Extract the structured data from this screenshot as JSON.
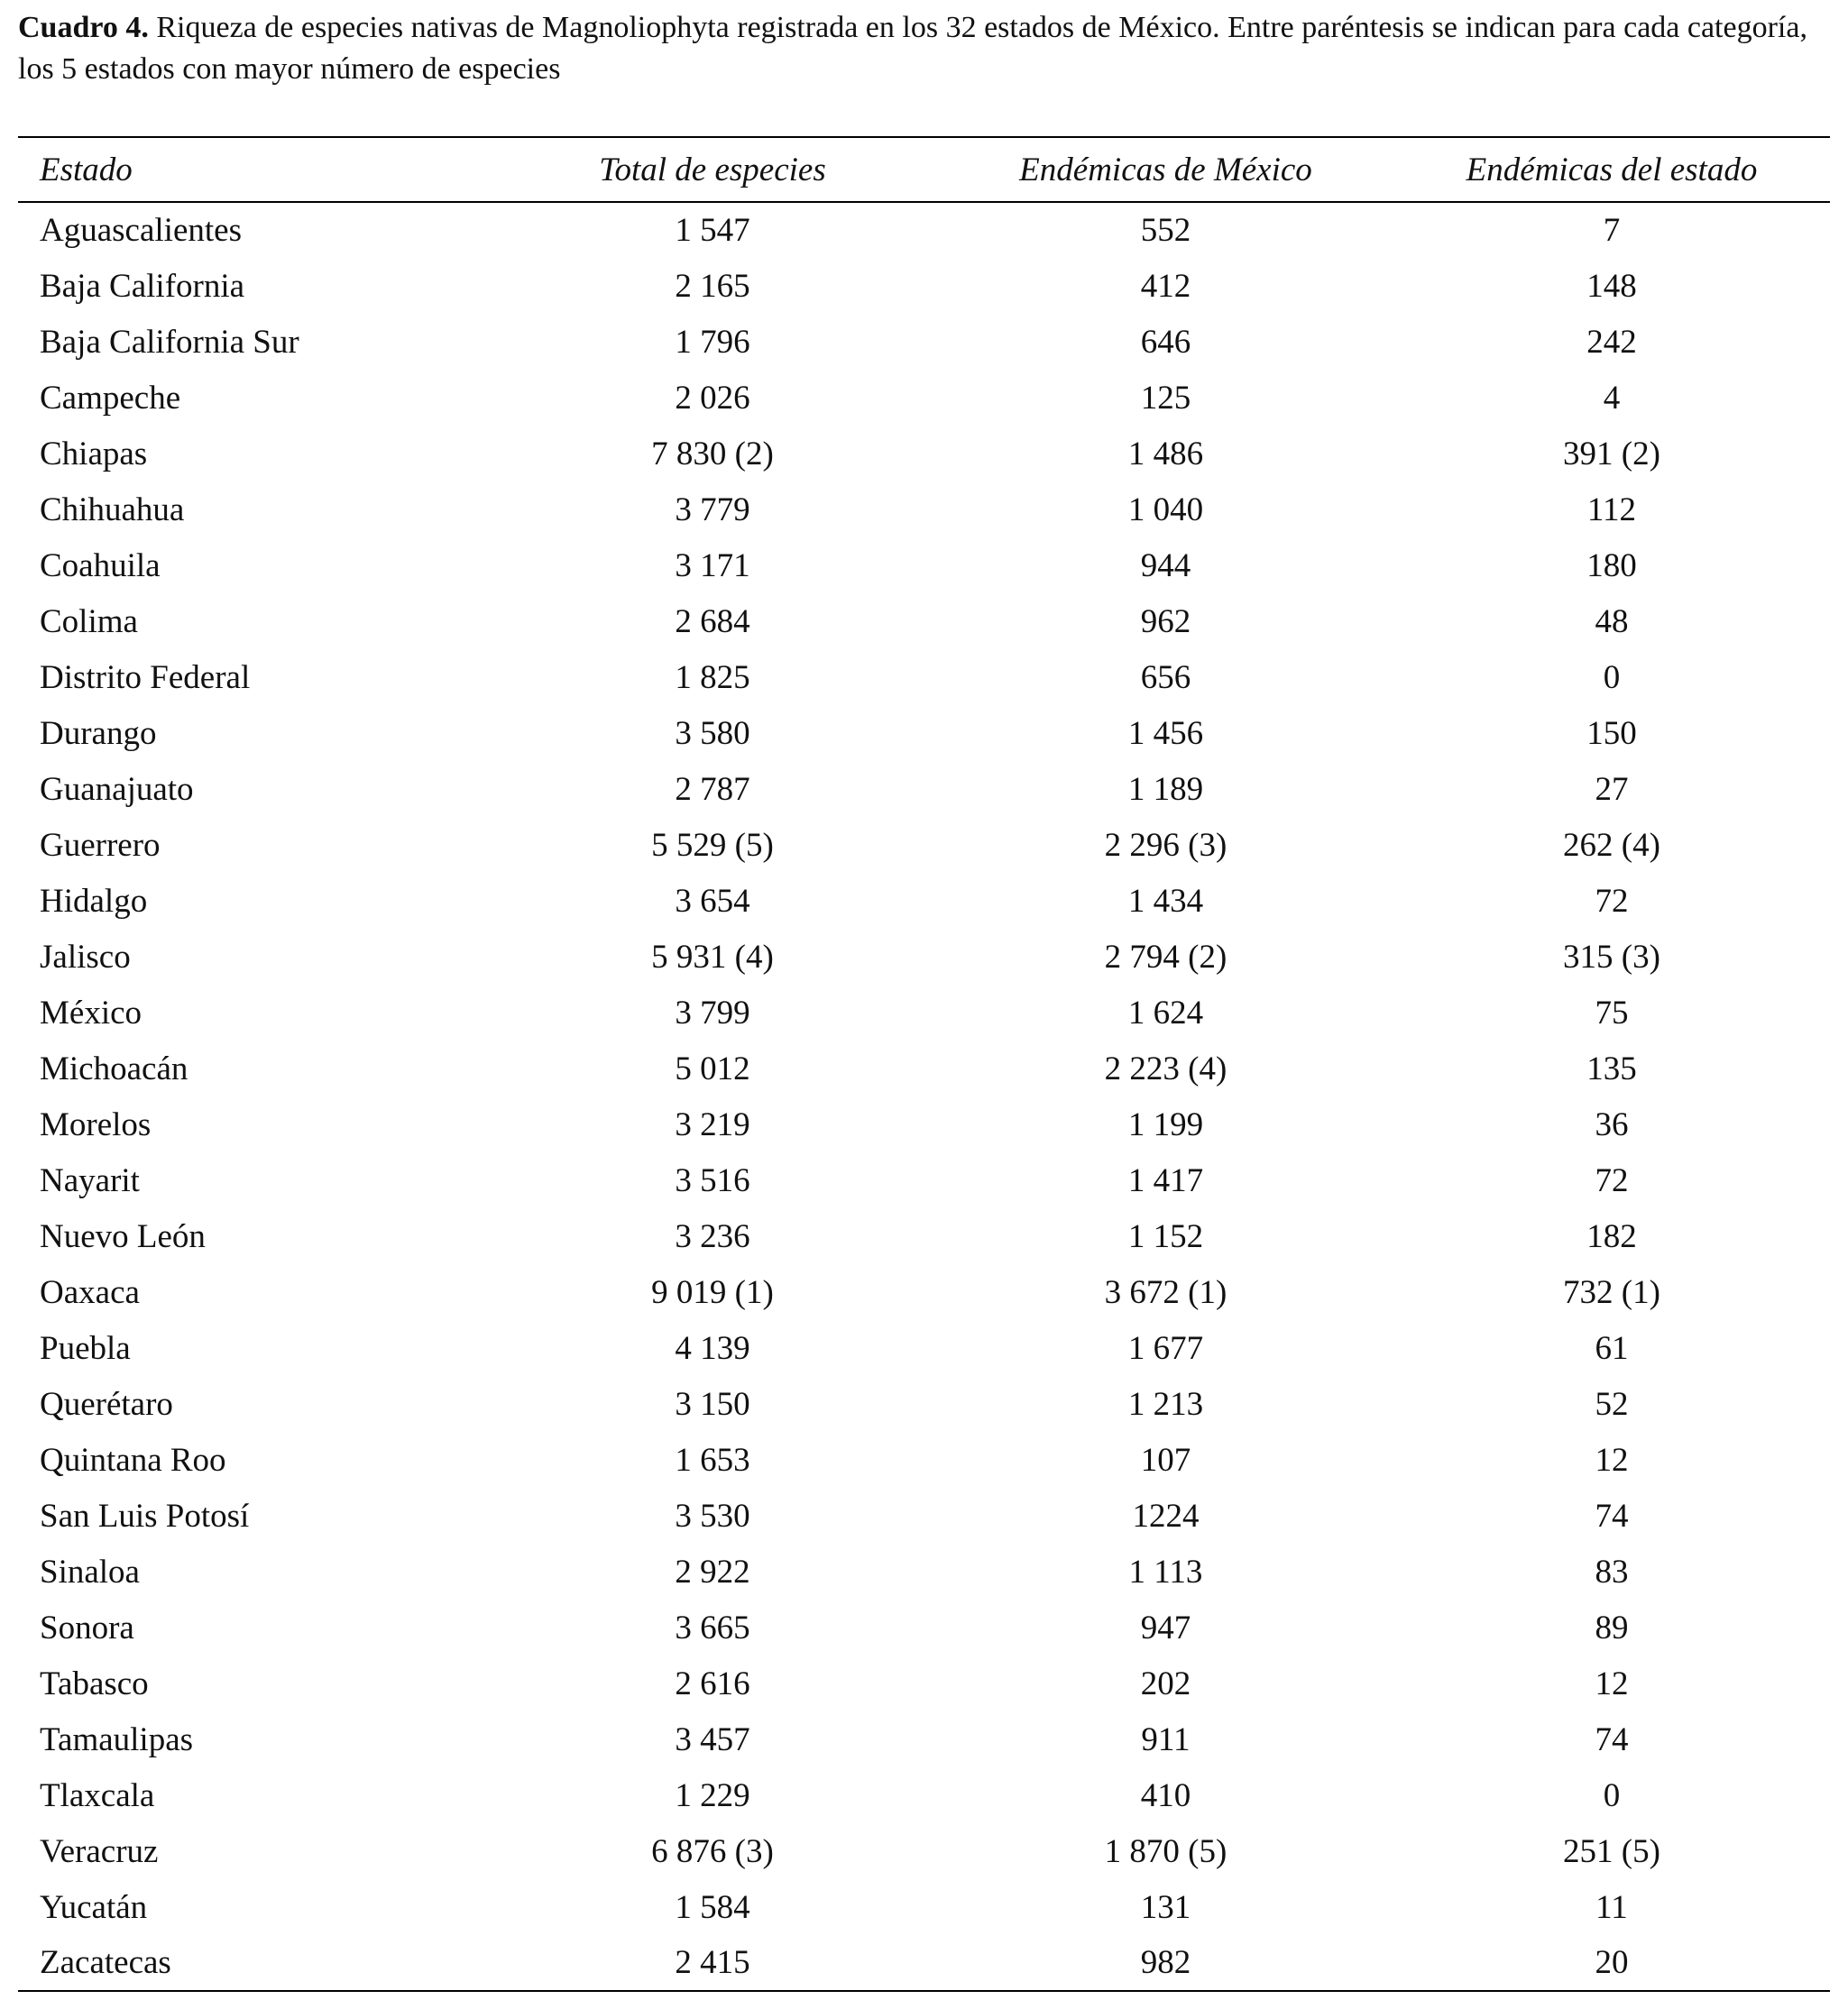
{
  "caption": {
    "label": "Cuadro 4.",
    "text": " Riqueza de especies nativas de Magnoliophyta registrada en los 32 estados de México. Entre paréntesis se indican para cada categoría, los 5 estados con mayor número de especies"
  },
  "table": {
    "headers": [
      "Estado",
      "Total de especies",
      "Endémicas de México",
      "Endémicas del estado"
    ],
    "rows": [
      [
        "Aguascalientes",
        "1 547",
        "552",
        "7"
      ],
      [
        "Baja California",
        "2 165",
        "412",
        "148"
      ],
      [
        "Baja California Sur",
        "1 796",
        "646",
        "242"
      ],
      [
        "Campeche",
        "2 026",
        "125",
        "4"
      ],
      [
        "Chiapas",
        "7 830 (2)",
        "1 486",
        "391 (2)"
      ],
      [
        "Chihuahua",
        "3 779",
        "1 040",
        "112"
      ],
      [
        "Coahuila",
        "3 171",
        "944",
        "180"
      ],
      [
        "Colima",
        "2 684",
        "962",
        "48"
      ],
      [
        "Distrito Federal",
        "1 825",
        "656",
        "0"
      ],
      [
        "Durango",
        "3 580",
        "1 456",
        "150"
      ],
      [
        "Guanajuato",
        "2 787",
        "1 189",
        "27"
      ],
      [
        "Guerrero",
        "5 529 (5)",
        "2 296 (3)",
        "262 (4)"
      ],
      [
        "Hidalgo",
        "3 654",
        "1 434",
        "72"
      ],
      [
        "Jalisco",
        "5 931 (4)",
        "2 794 (2)",
        "315 (3)"
      ],
      [
        "México",
        "3 799",
        "1 624",
        "75"
      ],
      [
        "Michoacán",
        "5 012",
        "2 223 (4)",
        "135"
      ],
      [
        "Morelos",
        "3 219",
        "1 199",
        "36"
      ],
      [
        "Nayarit",
        "3 516",
        "1 417",
        "72"
      ],
      [
        "Nuevo León",
        "3 236",
        "1 152",
        "182"
      ],
      [
        "Oaxaca",
        "9 019 (1)",
        "3 672 (1)",
        "732 (1)"
      ],
      [
        "Puebla",
        "4 139",
        "1 677",
        "61"
      ],
      [
        "Querétaro",
        "3 150",
        "1 213",
        "52"
      ],
      [
        "Quintana Roo",
        "1 653",
        "107",
        "12"
      ],
      [
        "San Luis Potosí",
        "3 530",
        "1224",
        "74"
      ],
      [
        "Sinaloa",
        "2 922",
        "1 113",
        "83"
      ],
      [
        "Sonora",
        "3 665",
        "947",
        "89"
      ],
      [
        "Tabasco",
        "2 616",
        "202",
        "12"
      ],
      [
        "Tamaulipas",
        "3 457",
        "911",
        "74"
      ],
      [
        "Tlaxcala",
        "1 229",
        "410",
        "0"
      ],
      [
        "Veracruz",
        "6 876 (3)",
        "1 870 (5)",
        "251 (5)"
      ],
      [
        "Yucatán",
        "1 584",
        "131",
        "11"
      ],
      [
        "Zacatecas",
        "2 415",
        "982",
        "20"
      ]
    ]
  }
}
